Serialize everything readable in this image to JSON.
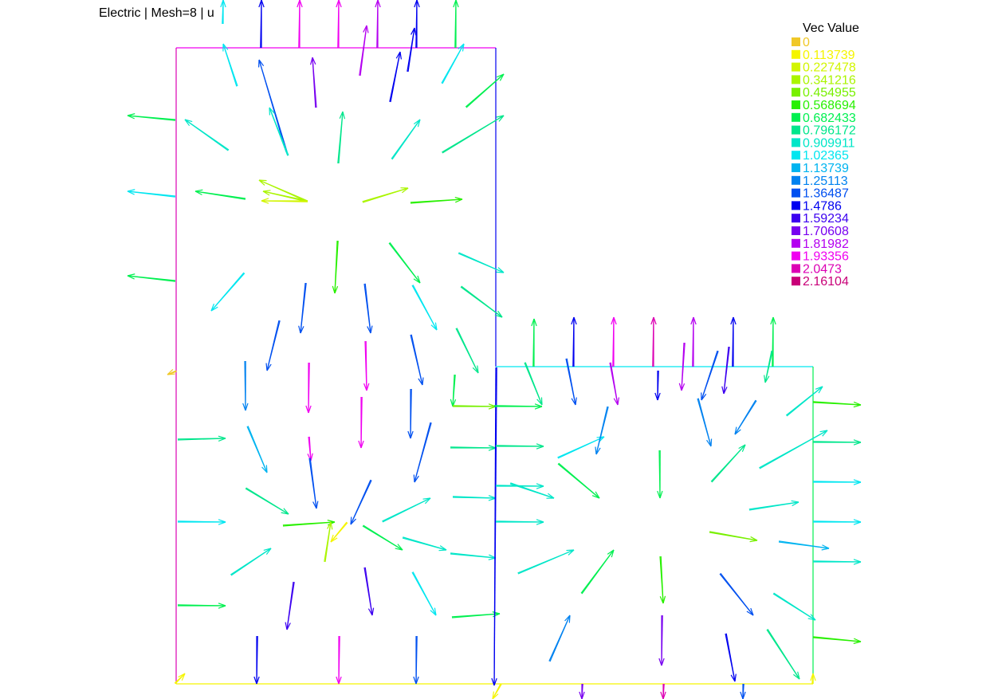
{
  "title": "Electric | Mesh=8 | u",
  "chart_data": {
    "type": "vector-field",
    "legend": {
      "title": "Vec Value",
      "levels": [
        {
          "label": "0",
          "color": "#f0c828"
        },
        {
          "label": "0.113739",
          "color": "#f5f500"
        },
        {
          "label": "0.227478",
          "color": "#d2f500"
        },
        {
          "label": "0.341216",
          "color": "#aaf500"
        },
        {
          "label": "0.454955",
          "color": "#78f000"
        },
        {
          "label": "0.568694",
          "color": "#28f000"
        },
        {
          "label": "0.682433",
          "color": "#00f050"
        },
        {
          "label": "0.796172",
          "color": "#00e68c"
        },
        {
          "label": "0.909911",
          "color": "#00e6c8"
        },
        {
          "label": "1.02365",
          "color": "#00e6f0"
        },
        {
          "label": "1.13739",
          "color": "#00b4f0"
        },
        {
          "label": "1.25113",
          "color": "#0082f0"
        },
        {
          "label": "1.36487",
          "color": "#0050f0"
        },
        {
          "label": "1.4786",
          "color": "#0000f0"
        },
        {
          "label": "1.59234",
          "color": "#3c00f0"
        },
        {
          "label": "1.70608",
          "color": "#7800f0"
        },
        {
          "label": "1.81982",
          "color": "#b400f0"
        },
        {
          "label": "1.93356",
          "color": "#f000f0"
        },
        {
          "label": "2.0473",
          "color": "#dc00b4"
        },
        {
          "label": "2.16104",
          "color": "#c80078"
        }
      ]
    },
    "vectors": [
      [
        280,
        30,
        280,
        0,
        9
      ],
      [
        328,
        60,
        328,
        0,
        13
      ],
      [
        376,
        60,
        376,
        0,
        17
      ],
      [
        425,
        60,
        425,
        0,
        17
      ],
      [
        474,
        60,
        474,
        0,
        16
      ],
      [
        523,
        60,
        523,
        0,
        13
      ],
      [
        572,
        60,
        572,
        0,
        6
      ],
      [
        298,
        108,
        280,
        55,
        9
      ],
      [
        360,
        190,
        325,
        75,
        12
      ],
      [
        397,
        135,
        392,
        72,
        15
      ],
      [
        452,
        95,
        460,
        32,
        16
      ],
      [
        490,
        128,
        502,
        65,
        13
      ],
      [
        512,
        90,
        520,
        35,
        13
      ],
      [
        555,
        105,
        582,
        55,
        9
      ],
      [
        287,
        188,
        232,
        150,
        8
      ],
      [
        362,
        195,
        338,
        135,
        8
      ],
      [
        425,
        205,
        430,
        140,
        7
      ],
      [
        492,
        200,
        527,
        150,
        8
      ],
      [
        555,
        192,
        632,
        145,
        7
      ],
      [
        585,
        135,
        632,
        93,
        6
      ],
      [
        220,
        150,
        160,
        145,
        6
      ],
      [
        220,
        246,
        160,
        240,
        9
      ],
      [
        220,
        352,
        160,
        346,
        6
      ],
      [
        308,
        249,
        245,
        240,
        6
      ],
      [
        386,
        252,
        325,
        226,
        3
      ],
      [
        386,
        252,
        330,
        240,
        3
      ],
      [
        386,
        252,
        328,
        252,
        2
      ],
      [
        455,
        254,
        512,
        236,
        3
      ],
      [
        515,
        255,
        580,
        250,
        5
      ],
      [
        423,
        302,
        420,
        368,
        5
      ],
      [
        488,
        305,
        527,
        355,
        6
      ],
      [
        575,
        318,
        632,
        342,
        8
      ],
      [
        578,
        360,
        630,
        398,
        7
      ],
      [
        306,
        342,
        265,
        390,
        9
      ],
      [
        350,
        402,
        335,
        465
      ],
      [
        383,
        355,
        377,
        418,
        12
      ],
      [
        457,
        356,
        465,
        418,
        12
      ],
      [
        517,
        358,
        548,
        414,
        9
      ],
      [
        572,
        412,
        600,
        468,
        7
      ],
      [
        515,
        420,
        530,
        483,
        12
      ],
      [
        458,
        428,
        460,
        490,
        17
      ],
      [
        387,
        455,
        387,
        518,
        17
      ],
      [
        307,
        453,
        308,
        515,
        11
      ],
      [
        221,
        465,
        210,
        470,
        0
      ],
      [
        223,
        552,
        283,
        550,
        7
      ],
      [
        223,
        655,
        283,
        655,
        9
      ],
      [
        223,
        760,
        283,
        760,
        6
      ],
      [
        310,
        535,
        335,
        593,
        10
      ],
      [
        387,
        548,
        390,
        578,
        17
      ],
      [
        453,
        498,
        453,
        562,
        17
      ],
      [
        515,
        488,
        515,
        550,
        12
      ],
      [
        570,
        470,
        568,
        510,
        6
      ],
      [
        568,
        510,
        622,
        510,
        4
      ],
      [
        540,
        530,
        520,
        605,
        12
      ],
      [
        565,
        562,
        622,
        562,
        7
      ],
      [
        568,
        624,
        622,
        625,
        8
      ],
      [
        308,
        613,
        362,
        645,
        7
      ],
      [
        388,
        575,
        397,
        638,
        12
      ],
      [
        465,
        602,
        440,
        658
      ],
      [
        480,
        655,
        540,
        625,
        8
      ],
      [
        355,
        660,
        420,
        655,
        5
      ],
      [
        408,
        705,
        415,
        655,
        3
      ],
      [
        435,
        655,
        415,
        680,
        1
      ],
      [
        455,
        660,
        505,
        690,
        6
      ],
      [
        505,
        675,
        560,
        690,
        8
      ],
      [
        565,
        695,
        622,
        700,
        8
      ],
      [
        290,
        722,
        340,
        688,
        8
      ],
      [
        368,
        730,
        360,
        790,
        14
      ],
      [
        457,
        712,
        467,
        772,
        14
      ],
      [
        517,
        718,
        547,
        772,
        9
      ],
      [
        567,
        775,
        627,
        770,
        6
      ],
      [
        322,
        798,
        322,
        858,
        13
      ],
      [
        425,
        798,
        425,
        858,
        17
      ],
      [
        522,
        798,
        522,
        858,
        12
      ],
      [
        622,
        461,
        620,
        860,
        13
      ],
      [
        670,
        460,
        670,
        400,
        6
      ],
      [
        720,
        460,
        720,
        398,
        13
      ],
      [
        770,
        460,
        770,
        398,
        17
      ],
      [
        820,
        460,
        820,
        398,
        18
      ],
      [
        870,
        460,
        870,
        398,
        16
      ],
      [
        920,
        460,
        920,
        398,
        13
      ],
      [
        970,
        460,
        970,
        398,
        6
      ],
      [
        658,
        455,
        680,
        508,
        7
      ],
      [
        710,
        450,
        722,
        508,
        12
      ],
      [
        765,
        455,
        775,
        508,
        16
      ],
      [
        825,
        465,
        825,
        502,
        13
      ],
      [
        858,
        430,
        855,
        490,
        16
      ],
      [
        900,
        440,
        880,
        502,
        12
      ],
      [
        914,
        435,
        908,
        494,
        14
      ],
      [
        968,
        440,
        960,
        480,
        7
      ],
      [
        620,
        510,
        680,
        510,
        6
      ],
      [
        622,
        560,
        682,
        560,
        7
      ],
      [
        622,
        610,
        682,
        610,
        8
      ],
      [
        622,
        655,
        682,
        655,
        8
      ],
      [
        1020,
        505,
        1080,
        508,
        5
      ],
      [
        1020,
        555,
        1080,
        555,
        7
      ],
      [
        1020,
        605,
        1080,
        605,
        9
      ],
      [
        1020,
        655,
        1080,
        655,
        9
      ],
      [
        1020,
        705,
        1080,
        705,
        8
      ],
      [
        1020,
        800,
        1080,
        805,
        5
      ],
      [
        700,
        575,
        758,
        548,
        9
      ],
      [
        762,
        510,
        748,
        570,
        11
      ],
      [
        827,
        565,
        828,
        625,
        6
      ],
      [
        875,
        500,
        892,
        560,
        11
      ],
      [
        948,
        502,
        922,
        545,
        11
      ],
      [
        987,
        522,
        1032,
        485,
        8
      ],
      [
        953,
        588,
        1038,
        540,
        8
      ],
      [
        893,
        605,
        935,
        558,
        7
      ],
      [
        640,
        607,
        695,
        625,
        8
      ],
      [
        700,
        582,
        752,
        625,
        6
      ],
      [
        890,
        668,
        950,
        678,
        4
      ],
      [
        977,
        680,
        1040,
        688,
        10
      ],
      [
        940,
        640,
        1002,
        630,
        8
      ],
      [
        650,
        720,
        720,
        690,
        8
      ],
      [
        730,
        745,
        770,
        690,
        6
      ],
      [
        828,
        698,
        832,
        757,
        5
      ],
      [
        903,
        720,
        945,
        772
      ],
      [
        970,
        745,
        1023,
        778,
        8
      ],
      [
        690,
        830,
        715,
        772,
        11
      ],
      [
        830,
        772,
        830,
        835,
        15
      ],
      [
        910,
        795,
        922,
        855,
        13
      ],
      [
        962,
        790,
        1003,
        852,
        7
      ],
      [
        220,
        858,
        232,
        845,
        1
      ],
      [
        628,
        858,
        618,
        877,
        1
      ],
      [
        730,
        858,
        730,
        877,
        15
      ],
      [
        832,
        858,
        832,
        877,
        18
      ],
      [
        932,
        858,
        932,
        877,
        12
      ],
      [
        1020,
        858,
        1020,
        845,
        1
      ]
    ],
    "boundary": [
      {
        "points": [
          [
            221,
            60
          ],
          [
            622,
            60
          ]
        ],
        "color": 17
      },
      {
        "points": [
          [
            221,
            60
          ],
          [
            221,
            858
          ]
        ],
        "color": 18
      },
      {
        "points": [
          [
            622,
            60
          ],
          [
            622,
            460
          ]
        ],
        "color": 13
      },
      {
        "points": [
          [
            622,
            460
          ],
          [
            1020,
            460
          ]
        ],
        "color": 9
      },
      {
        "points": [
          [
            1020,
            460
          ],
          [
            1020,
            858
          ]
        ],
        "color": 6
      },
      {
        "points": [
          [
            221,
            858
          ],
          [
            1020,
            858
          ]
        ],
        "color": 1
      }
    ]
  }
}
